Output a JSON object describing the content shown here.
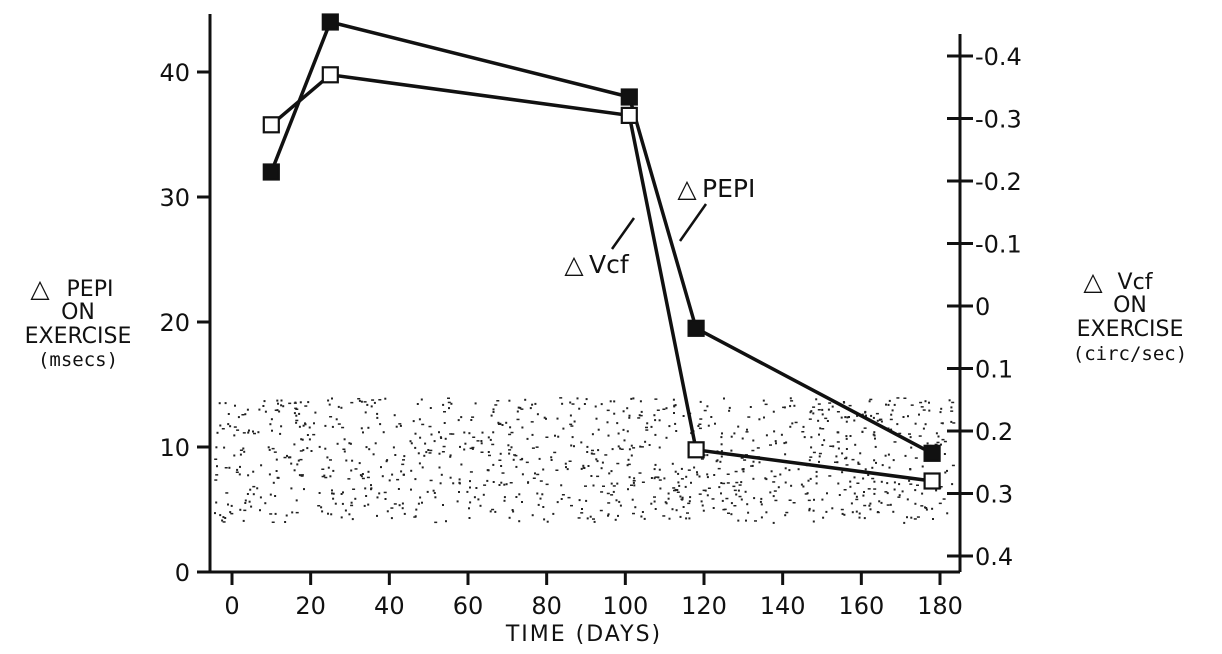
{
  "chart_data": {
    "type": "line",
    "xlabel": "TIME (DAYS)",
    "ylabel": [
      "PEPI",
      "ON",
      "EXERCISE",
      "(msecs)"
    ],
    "ylabel_symbol": "△",
    "y2label": [
      "Vcf",
      "ON",
      "EXERCISE",
      "(circ/sec)"
    ],
    "y2label_symbol": "△",
    "xlim": [
      0,
      180
    ],
    "ylim": [
      0,
      40
    ],
    "y2lim": [
      0.4,
      -0.4
    ],
    "x_ticks": [
      0,
      20,
      40,
      60,
      80,
      100,
      120,
      140,
      160,
      180
    ],
    "y_ticks": [
      0,
      10,
      20,
      30,
      40
    ],
    "y2_ticks": [
      "-0.4",
      "-0.3",
      "-0.2",
      "-0.1",
      "0",
      "0.1",
      "0.2",
      "0.3",
      "0.4"
    ],
    "y2_tick_values": [
      -0.4,
      -0.3,
      -0.2,
      -0.1,
      0,
      0.1,
      0.2,
      0.3,
      0.4
    ],
    "shaded_band": {
      "y_from": 4,
      "y_to": 14,
      "style": "stipple"
    },
    "grid": false,
    "series": [
      {
        "name": "PEPI",
        "label_symbol": "△",
        "axis": "left",
        "marker": "filled-square",
        "x": [
          10,
          25,
          101,
          118,
          178
        ],
        "y": [
          32,
          44,
          38,
          19.5,
          9.5
        ]
      },
      {
        "name": "Vcf",
        "label_symbol": "△",
        "axis": "right",
        "marker": "open-square",
        "x": [
          10,
          25,
          101,
          118,
          178
        ],
        "y": [
          -0.29,
          -0.37,
          -0.305,
          0.23,
          0.28
        ]
      }
    ]
  }
}
